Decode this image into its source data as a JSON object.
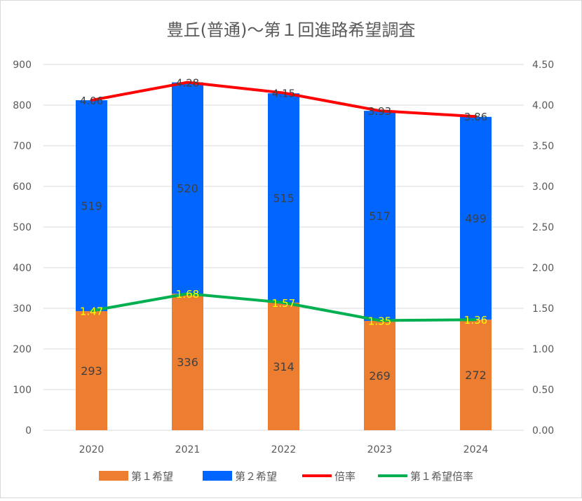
{
  "chart_data": {
    "type": "bar+line",
    "title": "豊丘(普通)〜第１回進路希望調査",
    "categories": [
      "2020",
      "2021",
      "2022",
      "2023",
      "2024"
    ],
    "y_left": {
      "min": 0,
      "max": 900,
      "step": 100
    },
    "y_right": {
      "min": 0,
      "max": 4.5,
      "step": 0.5,
      "decimals": 2
    },
    "gridlines": true,
    "legend_position": "bottom",
    "bar_series": [
      {
        "name": "第１希望",
        "color": "#ED7D31",
        "values": [
          293,
          336,
          314,
          269,
          272
        ]
      },
      {
        "name": "第２希望",
        "color": "#0066FF",
        "values": [
          519,
          520,
          515,
          517,
          499
        ]
      }
    ],
    "line_series": [
      {
        "name": "倍率",
        "color": "#FF0000",
        "axis": "right",
        "label_color": "#404040",
        "values": [
          "4.06",
          "4.28",
          "4.15",
          "3.93",
          "3.86"
        ]
      },
      {
        "name": "第１希望倍率",
        "color": "#00B050",
        "axis": "right",
        "label_color": "#FFFF00",
        "values": [
          "1.47",
          "1.68",
          "1.57",
          "1.35",
          "1.36"
        ]
      }
    ]
  }
}
